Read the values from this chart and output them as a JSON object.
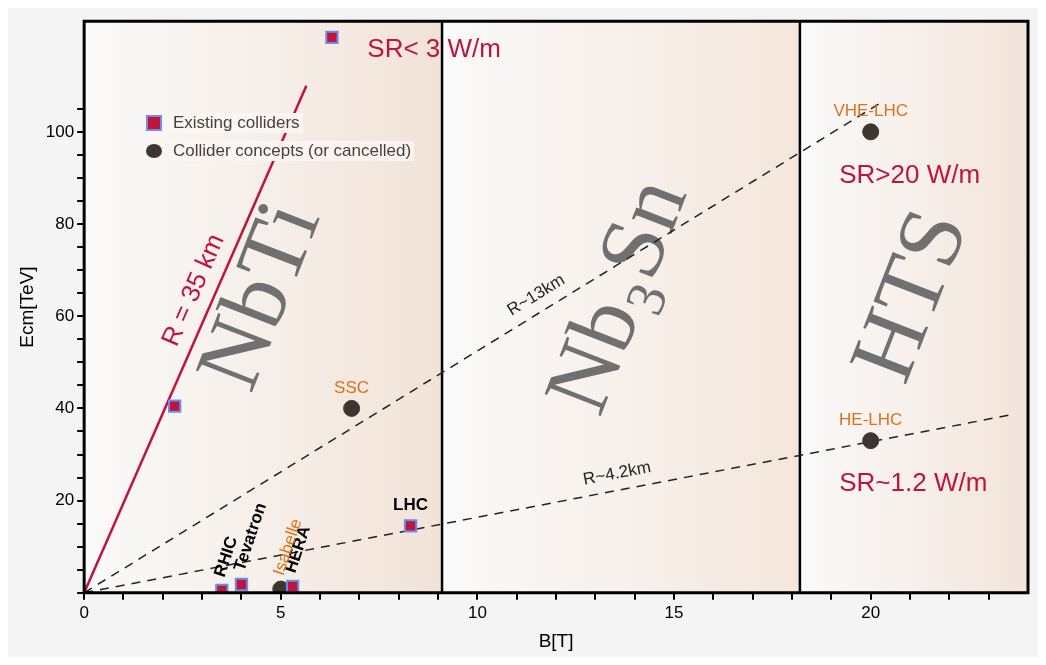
{
  "chart_data": {
    "type": "scatter",
    "xlabel": "B[T]",
    "ylabel": "Ecm[TeV]",
    "xlim": [
      0,
      24
    ],
    "ylim": [
      0,
      124
    ],
    "xticks": [
      0,
      {
        "value": 1,
        "label": null
      },
      {
        "value": 2,
        "label": null
      },
      {
        "value": 3,
        "label": null
      },
      {
        "value": 4,
        "label": null
      },
      5,
      {
        "value": 6,
        "label": null
      },
      {
        "value": 7,
        "label": null
      },
      {
        "value": 8,
        "label": null
      },
      {
        "value": 9,
        "label": null
      },
      10,
      {
        "value": 11,
        "label": null
      },
      {
        "value": 12,
        "label": null
      },
      {
        "value": 13,
        "label": null
      },
      {
        "value": 14,
        "label": null
      },
      15,
      {
        "value": 16,
        "label": null
      },
      {
        "value": 17,
        "label": null
      },
      {
        "value": 18,
        "label": null
      },
      {
        "value": 19,
        "label": null
      },
      20,
      {
        "value": 21,
        "label": null
      },
      {
        "value": 22,
        "label": null
      },
      {
        "value": 23,
        "label": null
      }
    ],
    "yticks": [
      {
        "value": 0,
        "label": null
      },
      {
        "value": 5,
        "label": null
      },
      {
        "value": 10,
        "label": null
      },
      {
        "value": 15,
        "label": null
      },
      20,
      {
        "value": 25,
        "label": null
      },
      {
        "value": 30,
        "label": null
      },
      {
        "value": 35,
        "label": null
      },
      40,
      {
        "value": 45,
        "label": null
      },
      {
        "value": 50,
        "label": null
      },
      {
        "value": 55,
        "label": null
      },
      60,
      {
        "value": 65,
        "label": null
      },
      {
        "value": 70,
        "label": null
      },
      {
        "value": 75,
        "label": null
      },
      80,
      {
        "value": 85,
        "label": null
      },
      {
        "value": 90,
        "label": null
      },
      {
        "value": 95,
        "label": null
      },
      100,
      {
        "value": 105,
        "label": null
      }
    ],
    "legend": "top left",
    "series": [
      {
        "name": "Existing colliders",
        "marker": "square",
        "color": "#c0143c",
        "x": [
          2.3,
          3.5,
          4.0,
          5.3,
          6.3,
          8.3
        ],
        "values": [
          40.5,
          0.5,
          1.8,
          1.4,
          120.5,
          14.5
        ],
        "value_labels": [
          null,
          "RHIC",
          "Tevatron",
          "HERA",
          null,
          "LHC"
        ]
      },
      {
        "name": "Collider concepts (or cancelled)",
        "marker": "circle",
        "color": "#3d3530",
        "x": [
          5.0,
          6.8,
          20,
          20
        ],
        "values": [
          0.8,
          40,
          33,
          100
        ],
        "value_labels": [
          "Isabelle",
          "SSC",
          "HE-LHC",
          "VHE-LHC"
        ]
      },
      {
        "name": "R = 35 km",
        "type": "line",
        "line_style": "solid",
        "color": "#c0143c",
        "x": [
          0,
          5.65
        ],
        "values": [
          0,
          110
        ]
      },
      {
        "name": "R~13km",
        "type": "line",
        "line_style": "dashed",
        "color": "#222222",
        "x": [
          0,
          20.2
        ],
        "values": [
          0,
          106
        ]
      },
      {
        "name": "R~4.2km",
        "type": "line",
        "line_style": "dashed",
        "color": "#222222",
        "x": [
          0,
          23.5
        ],
        "values": [
          0,
          38.5
        ]
      }
    ],
    "bands": [
      {
        "axis": "x",
        "from": 0,
        "to": 9.1,
        "label": "NbTi",
        "color": "#f2e3d8"
      },
      {
        "axis": "x",
        "from": 9.1,
        "to": 18.2,
        "label": "Nb₃Sn",
        "color": "#f4e6dc"
      },
      {
        "axis": "x",
        "from": 18.2,
        "to": 24,
        "label": "HTS",
        "color": "#f3e4da"
      }
    ],
    "ref_lines": [
      {
        "axis": "x",
        "value": 9.1,
        "color": "#000000"
      },
      {
        "axis": "x",
        "value": 18.2,
        "color": "#000000"
      }
    ],
    "annotations": [
      "SR< 3 W/m",
      "SR>20 W/m",
      "SR~1.2 W/m"
    ]
  }
}
